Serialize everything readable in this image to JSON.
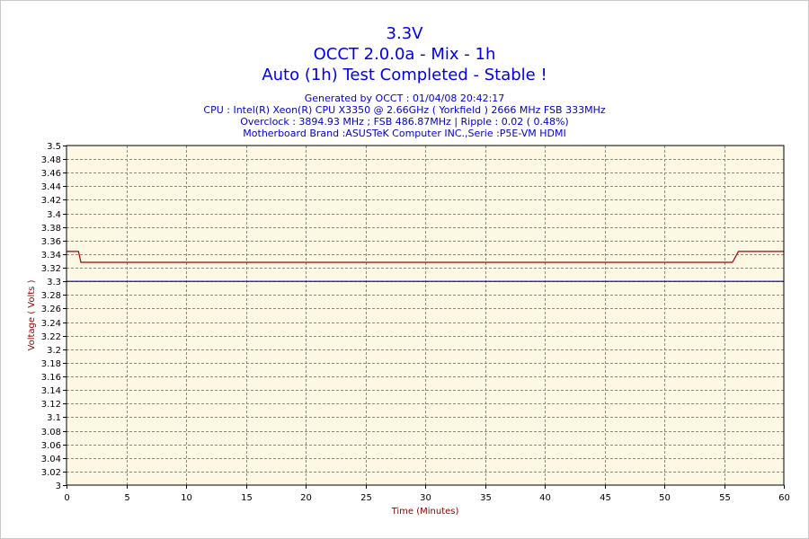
{
  "titles": {
    "line1": "3.3V",
    "line2": "OCCT 2.0.0a - Mix - 1h",
    "line3": "Auto (1h) Test Completed - Stable !"
  },
  "info": {
    "generated": "Generated by OCCT : 01/04/08 20:42:17",
    "cpu": "CPU : Intel(R) Xeon(R) CPU X3350 @ 2.66GHz ( Yorkfield ) 2666 MHz FSB 333MHz",
    "overclock": "Overclock : 3894.93 MHz ; FSB 486.87MHz | Ripple : 0.02 ( 0.48%)",
    "motherboard": "Motherboard Brand :ASUSTeK Computer INC.,Serie :P5E-VM HDMI"
  },
  "colors": {
    "plot_background": "#fdf8e4",
    "grid": "#8a8a7a",
    "measured_line": "#a80000",
    "reference_line": "#0000b4",
    "title": "#0000e6",
    "info": "#0000cc",
    "axis_title": "#8b0000"
  },
  "chart_data": {
    "type": "line",
    "xlabel": "Time (Minutes)",
    "ylabel": "Voltage ( Volts )",
    "xlim": [
      0,
      60
    ],
    "ylim": [
      3.0,
      3.5
    ],
    "x_ticks": [
      0,
      5,
      10,
      15,
      20,
      25,
      30,
      35,
      40,
      45,
      50,
      55,
      60
    ],
    "y_ticks": [
      "3",
      "3.02",
      "3.04",
      "3.06",
      "3.08",
      "3.1",
      "3.12",
      "3.14",
      "3.16",
      "3.18",
      "3.2",
      "3.22",
      "3.24",
      "3.26",
      "3.28",
      "3.3",
      "3.32",
      "3.34",
      "3.36",
      "3.38",
      "3.4",
      "3.42",
      "3.44",
      "3.46",
      "3.48",
      "3.5"
    ],
    "grid": true,
    "series": [
      {
        "role": "measured",
        "points": [
          [
            0,
            3.344
          ],
          [
            1.0,
            3.344
          ],
          [
            1.2,
            3.328
          ],
          [
            55.7,
            3.328
          ],
          [
            56.2,
            3.344
          ],
          [
            60,
            3.344
          ]
        ]
      },
      {
        "role": "reference",
        "points": [
          [
            0,
            3.3
          ],
          [
            60,
            3.3
          ]
        ]
      }
    ]
  }
}
